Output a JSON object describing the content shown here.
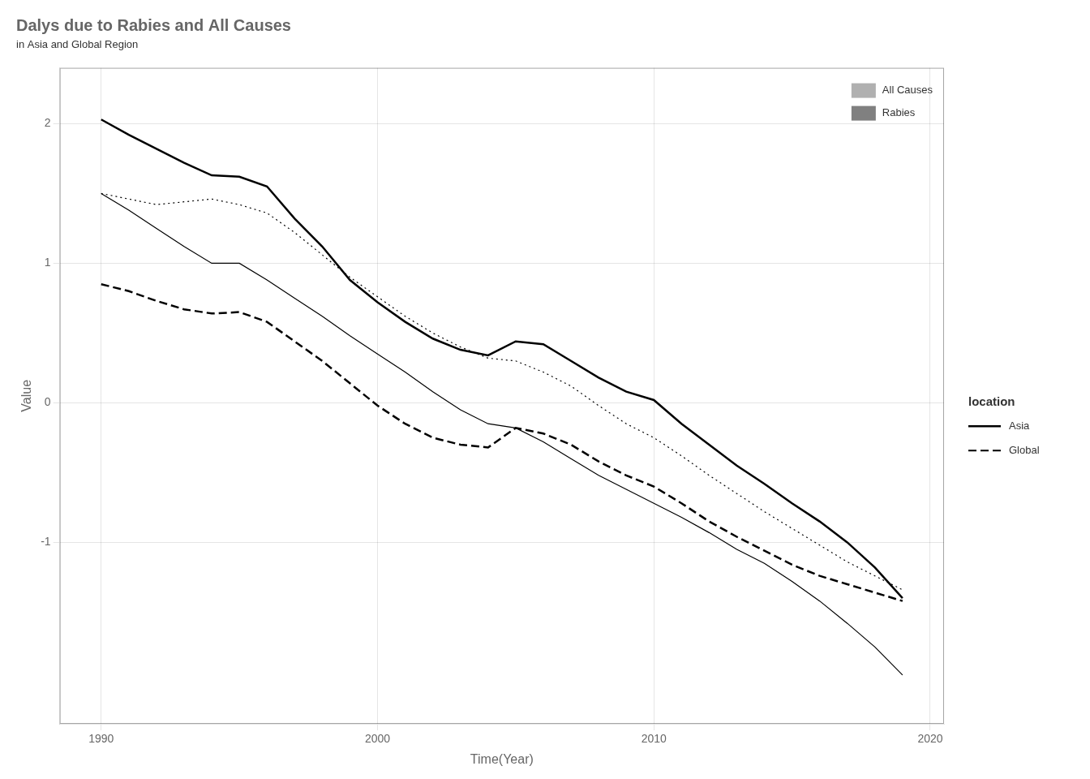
{
  "chart_data": {
    "type": "line",
    "title": "Dalys due to Rabies and All Causes",
    "subtitle": "in Asia and Global Region",
    "x_label": "Time(Year)",
    "y_label": "Value",
    "x": [
      1990,
      1991,
      1992,
      1993,
      1994,
      1995,
      1996,
      1997,
      1998,
      1999,
      2000,
      2001,
      2002,
      2003,
      2004,
      2005,
      2006,
      2007,
      2008,
      2009,
      2010,
      2011,
      2012,
      2013,
      2014,
      2015,
      2016,
      2017,
      2018,
      2019
    ],
    "series": [
      {
        "cause": "Rabies",
        "location": "Asia",
        "color": "#000000",
        "line_style": "solid",
        "values": [
          2.03,
          1.92,
          1.82,
          1.72,
          1.63,
          1.62,
          1.55,
          1.32,
          1.12,
          0.88,
          0.72,
          0.58,
          0.46,
          0.38,
          0.34,
          0.44,
          0.42,
          0.3,
          0.18,
          0.08,
          0.02,
          -0.15,
          -0.3,
          -0.45,
          -0.58,
          -0.72,
          -0.85,
          -1.0,
          -1.18,
          -1.4
        ]
      },
      {
        "cause": "All Causes",
        "location": "Asia",
        "color": "#000000",
        "line_style": "solid",
        "values": [
          1.5,
          1.38,
          1.25,
          1.12,
          1.0,
          1.0,
          0.88,
          0.75,
          0.62,
          0.48,
          0.35,
          0.22,
          0.08,
          -0.05,
          -0.15,
          -0.18,
          -0.28,
          -0.4,
          -0.52,
          -0.62,
          -0.72,
          -0.82,
          -0.93,
          -1.05,
          -1.15,
          -1.28,
          -1.42,
          -1.58,
          -1.75,
          -1.95
        ]
      },
      {
        "cause": "Rabies",
        "location": "Global",
        "color": "#000000",
        "line_style": "dashed",
        "values": [
          0.85,
          0.8,
          0.73,
          0.67,
          0.64,
          0.65,
          0.58,
          0.44,
          0.3,
          0.14,
          -0.02,
          -0.15,
          -0.25,
          -0.3,
          -0.32,
          -0.18,
          -0.22,
          -0.3,
          -0.42,
          -0.52,
          -0.6,
          -0.72,
          -0.85,
          -0.96,
          -1.06,
          -1.16,
          -1.24,
          -1.3,
          -1.36,
          -1.42
        ]
      },
      {
        "cause": "All Causes",
        "location": "Global",
        "color": "#000000",
        "line_style": "dotted",
        "values": [
          1.5,
          1.46,
          1.42,
          1.44,
          1.46,
          1.42,
          1.36,
          1.22,
          1.06,
          0.9,
          0.76,
          0.62,
          0.5,
          0.4,
          0.32,
          0.3,
          0.22,
          0.12,
          -0.02,
          -0.15,
          -0.25,
          -0.38,
          -0.52,
          -0.65,
          -0.78,
          -0.9,
          -1.02,
          -1.14,
          -1.24,
          -1.34
        ]
      }
    ],
    "xlim": [
      1988.5,
      2020.5
    ],
    "xticks": [
      1990,
      2000,
      2010,
      2020
    ],
    "ylim": [
      -2.3,
      2.4
    ],
    "yticks": [
      -1,
      0,
      1,
      2
    ],
    "grid": true,
    "legend": "upper right",
    "legend_items": [
      {
        "label": "All Causes",
        "color": "#b0b0b0"
      },
      {
        "label": "Rabies",
        "color": "#808080"
      }
    ],
    "legend2_title": "location",
    "legend2_items": [
      {
        "label": "Asia",
        "line_style": "solid"
      },
      {
        "label": "Global",
        "line_style": "dashed"
      }
    ]
  }
}
